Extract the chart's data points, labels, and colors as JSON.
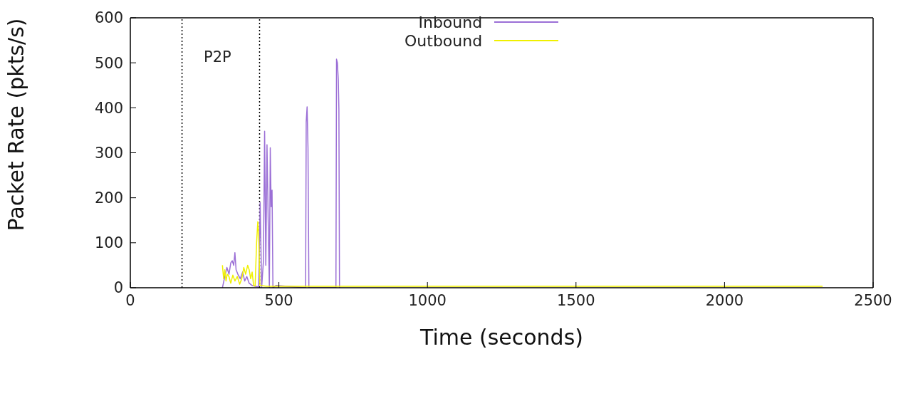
{
  "chart_data": {
    "type": "line",
    "xlabel": "Time (seconds)",
    "ylabel": "Packet Rate (pkts/s)",
    "xlim": [
      0,
      2500
    ],
    "xticks": [
      0,
      500,
      1000,
      1500,
      2000,
      2500
    ],
    "ylim": [
      0,
      600
    ],
    "yticks": [
      0,
      100,
      200,
      300,
      400,
      500,
      600
    ],
    "legend": "top",
    "marker": "none",
    "line_style": "solid",
    "ref_lines": [
      {
        "axis": "x",
        "value": 174,
        "color": "#000000",
        "line_style": "dotted"
      },
      {
        "axis": "x",
        "value": 435,
        "color": "#000000",
        "line_style": "dotted"
      }
    ],
    "annotations": [
      "P2P"
    ],
    "series": [
      {
        "name": "Inbound",
        "color": "#9b6fd6",
        "x": [
          310,
          318,
          325,
          332,
          338,
          343,
          348,
          352,
          356,
          362,
          370,
          378,
          385,
          392,
          400,
          410,
          420,
          432,
          437,
          442,
          448,
          452,
          456,
          460,
          464,
          468,
          471,
          474,
          477,
          480,
          490,
          590,
          592,
          595,
          598,
          601,
          692,
          694,
          697,
          700,
          702,
          704
        ],
        "values": [
          0,
          25,
          45,
          30,
          55,
          60,
          50,
          78,
          40,
          30,
          20,
          35,
          15,
          25,
          10,
          5,
          3,
          2,
          189,
          0,
          60,
          348,
          50,
          318,
          150,
          0,
          311,
          180,
          217,
          0,
          5,
          0,
          369,
          402,
          310,
          0,
          0,
          508,
          500,
          462,
          397,
          0
        ]
      },
      {
        "name": "Outbound",
        "color": "#f0f000",
        "x": [
          310,
          314,
          318,
          322,
          326,
          332,
          338,
          345,
          352,
          360,
          368,
          375,
          382,
          388,
          395,
          400,
          405,
          410,
          415,
          420,
          425,
          429,
          432,
          436,
          460,
          600,
          1000,
          1500,
          2000,
          2330
        ],
        "values": [
          50,
          20,
          40,
          15,
          30,
          25,
          10,
          28,
          15,
          25,
          8,
          20,
          45,
          30,
          50,
          40,
          20,
          35,
          5,
          4,
          100,
          147,
          120,
          5,
          3,
          3,
          3,
          3,
          3,
          3
        ]
      }
    ]
  }
}
